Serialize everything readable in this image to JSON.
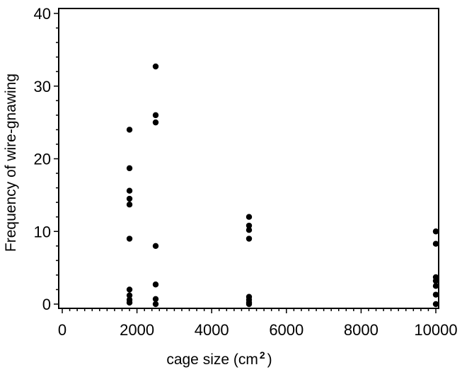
{
  "chart_data": {
    "type": "scatter",
    "xlabel": "cage size (cm",
    "xlabel_sup": "2",
    "xlabel_end": ")",
    "ylabel": "Frequency of wire-gnawing",
    "xlim": [
      0,
      10000
    ],
    "ylim": [
      0,
      40
    ],
    "x_ticks": [
      "0",
      "2000",
      "4000",
      "6000",
      "8000",
      "10000"
    ],
    "y_ticks": [
      "0",
      "10",
      "20",
      "30",
      "40"
    ],
    "x_tick_values": [
      0,
      2000,
      4000,
      6000,
      8000,
      10000
    ],
    "y_tick_values": [
      0,
      10,
      20,
      30,
      40
    ],
    "grid": false,
    "legend": "none",
    "marker_color": "#000000",
    "points": [
      {
        "x": 1800,
        "y": 24
      },
      {
        "x": 1800,
        "y": 18.7
      },
      {
        "x": 1800,
        "y": 15.6
      },
      {
        "x": 1800,
        "y": 14.5
      },
      {
        "x": 1800,
        "y": 13.7
      },
      {
        "x": 1800,
        "y": 9
      },
      {
        "x": 1800,
        "y": 2
      },
      {
        "x": 1800,
        "y": 1.2
      },
      {
        "x": 1800,
        "y": 0.6
      },
      {
        "x": 1800,
        "y": 0.2
      },
      {
        "x": 2500,
        "y": 32.7
      },
      {
        "x": 2500,
        "y": 26
      },
      {
        "x": 2500,
        "y": 25
      },
      {
        "x": 2500,
        "y": 8
      },
      {
        "x": 2500,
        "y": 2.7
      },
      {
        "x": 2500,
        "y": 0.7
      },
      {
        "x": 2500,
        "y": 0
      },
      {
        "x": 5000,
        "y": 12
      },
      {
        "x": 5000,
        "y": 10.8
      },
      {
        "x": 5000,
        "y": 10.2
      },
      {
        "x": 5000,
        "y": 9
      },
      {
        "x": 5000,
        "y": 1
      },
      {
        "x": 5000,
        "y": 0.6
      },
      {
        "x": 5000,
        "y": 0.2
      },
      {
        "x": 5000,
        "y": 0
      },
      {
        "x": 10000,
        "y": 10
      },
      {
        "x": 10000,
        "y": 8.3
      },
      {
        "x": 10000,
        "y": 3.7
      },
      {
        "x": 10000,
        "y": 3.2
      },
      {
        "x": 10000,
        "y": 2.5
      },
      {
        "x": 10000,
        "y": 1.3
      },
      {
        "x": 10000,
        "y": 0
      }
    ]
  }
}
